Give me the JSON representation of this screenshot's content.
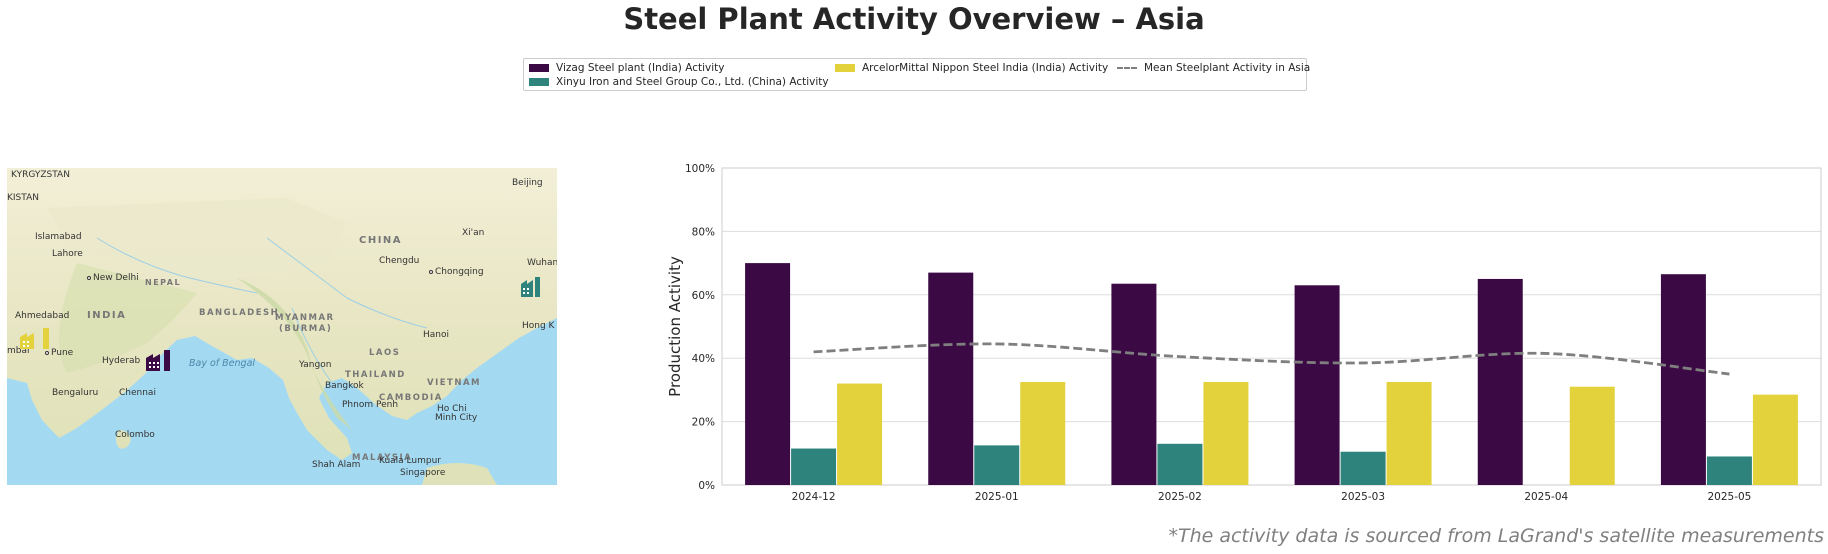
{
  "title": "Steel Plant Activity Overview – Asia",
  "footnote": "*The activity data is sourced from LaGrand's satellite measurements",
  "legend": {
    "items": [
      {
        "label": "Vizag Steel plant (India) Activity",
        "color": "#3b0a45",
        "kind": "bar"
      },
      {
        "label": "Xinyu Iron and Steel Group Co., Ltd. (China) Activity",
        "color": "#2e837c",
        "kind": "bar"
      },
      {
        "label": "ArcelorMittal Nippon Steel India (India) Activity",
        "color": "#e3d23b",
        "kind": "bar"
      },
      {
        "label": "Mean Steelplant Activity in Asia",
        "color": "#7f7f7f",
        "kind": "line"
      }
    ]
  },
  "map": {
    "labels": {
      "kyrgyzstan": "KYRGYZSTAN",
      "kistan": "KISTAN",
      "china": "CHINA",
      "india": "INDIA",
      "nepal": "NEPAL",
      "bangladesh": "BANGLADESH",
      "myanmar": "MYANMAR",
      "burma": "(BURMA)",
      "laos": "LAOS",
      "thailand": "THAILAND",
      "vietnam": "VIETNAM",
      "cambodia": "CAMBODIA",
      "malaysia": "MALAYSIA",
      "bay_of_bengal": "Bay of Bengal",
      "beijing": "Beijing",
      "xian": "Xi'an",
      "wuhan": "Wuhan",
      "chengdu": "Chengdu",
      "chongqing": "Chongqing",
      "islamabad": "Islamabad",
      "lahore": "Lahore",
      "new_delhi": "New Delhi",
      "ahmedabad": "Ahmedabad",
      "pune": "Pune",
      "mumbai": "mbai",
      "hyderabad": "Hyderab",
      "bengaluru": "Bengaluru",
      "chennai": "Chennai",
      "colombo": "Colombo",
      "yangon": "Yangon",
      "hanoi": "Hanoi",
      "hong_kong": "Hong K",
      "bangkok": "Bangkok",
      "phnom_penh": "Phnom Penh",
      "ho_chi_minh_1": "Ho Chi",
      "ho_chi_minh_2": "Minh City",
      "shah_alam": "Shah Alam",
      "kuala_lumpur": "Kuala Lumpur",
      "singapore": "Singapore"
    },
    "plant_icons": [
      {
        "name": "vizag-plant-icon",
        "color": "#3b0a45"
      },
      {
        "name": "xinyu-plant-icon",
        "color": "#2e837c"
      },
      {
        "name": "arcelormittal-plant-icon",
        "color": "#e3d23b"
      }
    ]
  },
  "chart_data": {
    "type": "bar",
    "categories": [
      "2024-12",
      "2025-01",
      "2025-02",
      "2025-03",
      "2025-04",
      "2025-05"
    ],
    "series": [
      {
        "name": "Vizag Steel plant (India) Activity",
        "color": "#3b0a45",
        "values": [
          70,
          67,
          63.5,
          63,
          65,
          66.5
        ]
      },
      {
        "name": "Xinyu Iron and Steel Group Co., Ltd. (China) Activity",
        "color": "#2e837c",
        "values": [
          11.5,
          12.5,
          13,
          10.5,
          null,
          9
        ]
      },
      {
        "name": "ArcelorMittal Nippon Steel India (India) Activity",
        "color": "#e3d23b",
        "values": [
          32,
          32.5,
          32.5,
          32.5,
          31,
          28.5
        ]
      }
    ],
    "mean_line": {
      "name": "Mean Steelplant Activity in Asia",
      "color": "#7f7f7f",
      "style": "dashed",
      "values": [
        42,
        44.5,
        40.5,
        38.5,
        41.5,
        35
      ]
    },
    "ylabel": "Production Activity",
    "xlabel": "",
    "ylim": [
      0,
      100
    ],
    "yticks": [
      0,
      20,
      40,
      60,
      80,
      100
    ],
    "ytick_labels": [
      "0%",
      "20%",
      "40%",
      "60%",
      "80%",
      "100%"
    ],
    "grid": "horizontal",
    "legend_placement": "top-center"
  }
}
